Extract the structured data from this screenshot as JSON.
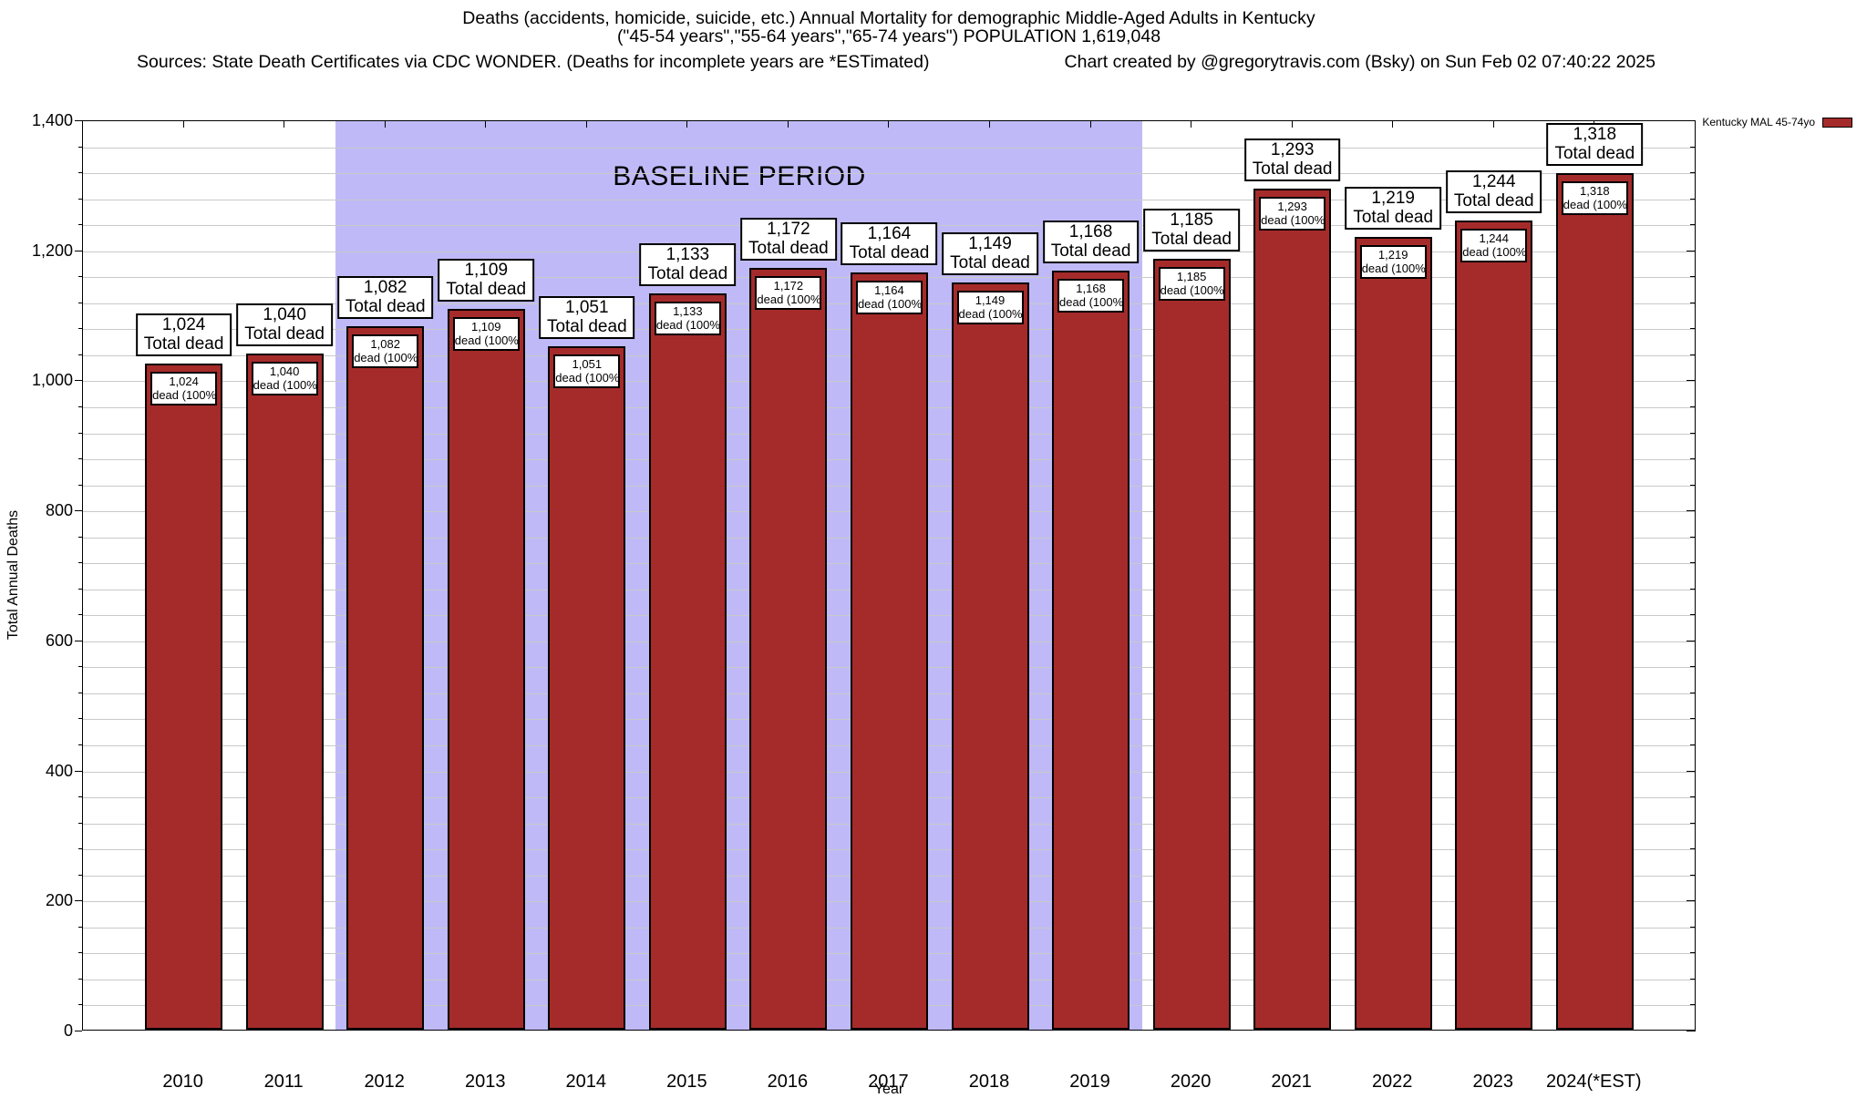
{
  "header": {
    "title_line1": "Deaths (accidents, homicide, suicide, etc.) Annual Mortality for demographic Middle-Aged Adults in Kentucky",
    "title_line2": "(\"45-54 years\",\"55-64 years\",\"65-74 years\") POPULATION 1,619,048",
    "sources": "Sources: State Death Certificates via CDC WONDER. (Deaths for incomplete years are *ESTimated)",
    "credit": "Chart created by @gregorytravis.com (Bsky) on Sun Feb 02 07:40:22 2025"
  },
  "legend": {
    "label": "Kentucky MAL 45-74yo"
  },
  "axes": {
    "ylabel": "Total Annual Deaths",
    "xlabel": "Year",
    "ytick_labels": [
      "0",
      "200",
      "400",
      "600",
      "800",
      "1,000",
      "1,200",
      "1,400"
    ]
  },
  "chart_data": {
    "type": "bar",
    "title": "Deaths (accidents, homicide, suicide, etc.) Annual Mortality for demographic Middle-Aged Adults in Kentucky (\"45-54 years\",\"55-64 years\",\"65-74 years\") POPULATION 1,619,048",
    "xlabel": "Year",
    "ylabel": "Total Annual Deaths",
    "ylim": [
      0,
      1400
    ],
    "ytick_step": 200,
    "minor_gridline_step": 40,
    "grid": true,
    "legend_position": "top-right-outside",
    "categories": [
      "2010",
      "2011",
      "2012",
      "2013",
      "2014",
      "2015",
      "2016",
      "2017",
      "2018",
      "2019",
      "2020",
      "2021",
      "2022",
      "2023",
      "2024(*EST)"
    ],
    "series": [
      {
        "name": "Kentucky MAL 45-74yo",
        "values": [
          1024,
          1040,
          1082,
          1109,
          1051,
          1133,
          1172,
          1164,
          1149,
          1168,
          1185,
          1293,
          1219,
          1244,
          1318
        ]
      }
    ],
    "bar_top_label_suffix": "Total dead",
    "bar_inside_label_suffix": "dead (100%)",
    "baseline_band": {
      "text": "BASELINE PERIOD",
      "from": "2012",
      "to": "2019",
      "color": "#bfbaf7"
    }
  },
  "colors": {
    "bar_fill": "#a52b2a",
    "bar_border": "#000000",
    "band": "#bfbaf7",
    "gridline": "#c9c9c9",
    "axis": "#000000",
    "background": "#ffffff",
    "text": "#000000"
  }
}
